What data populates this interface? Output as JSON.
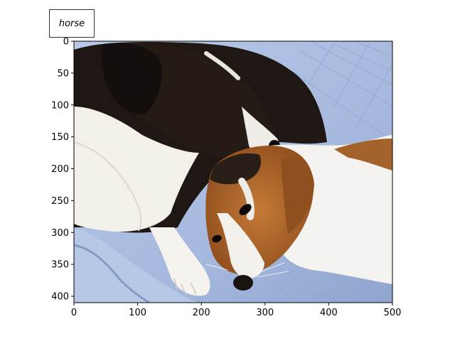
{
  "annotation": {
    "label": "horse"
  },
  "image_content": {
    "subject": "two dogs cuddling on a light blue quilted blanket",
    "colors": {
      "blanket": "#a9bde0",
      "blanket_shadow": "#7f95c4",
      "dark_dog": "#1c1612",
      "white_fur": "#f4f2ee",
      "tan_fur": "#b96a2c"
    }
  },
  "axes": {
    "x": {
      "range": [
        0,
        500
      ],
      "ticks": [
        "0",
        "100",
        "200",
        "300",
        "400",
        "500"
      ]
    },
    "y": {
      "range": [
        0,
        410
      ],
      "ticks": [
        "0",
        "50",
        "100",
        "150",
        "200",
        "250",
        "300",
        "350",
        "400"
      ]
    }
  }
}
